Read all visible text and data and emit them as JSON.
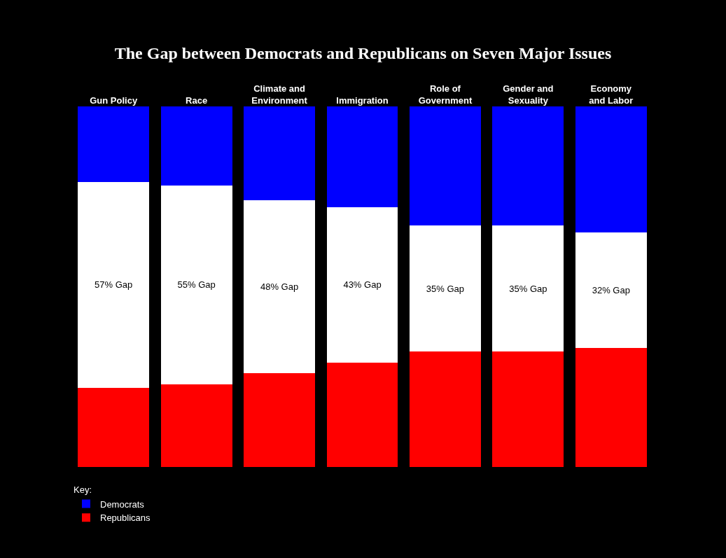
{
  "chart_data": {
    "type": "bar",
    "title": "The Gap between Democrats and Republicans on Seven Major Issues",
    "ylim": [
      0,
      100
    ],
    "tick_labels": "x",
    "stacked": true,
    "legend": "bottom left",
    "legend_title": "Key:",
    "categories": [
      "Gun Policy",
      "Race",
      "Climate and Environment",
      "Immigration",
      "Role of Government",
      "Gender and Sexuality",
      "Economy and Labor"
    ],
    "series": [
      {
        "name": "Republicans",
        "color": "#ff0000",
        "values": [
          22,
          23,
          26,
          29,
          32,
          32,
          33
        ]
      },
      {
        "color": "#ffffff",
        "values": [
          57,
          55,
          48,
          43,
          35,
          35,
          32
        ],
        "value_labels": [
          "57% Gap",
          "55% Gap",
          "48% Gap",
          "43% Gap",
          "35% Gap",
          "35% Gap",
          "32% Gap"
        ]
      },
      {
        "name": "Democrats",
        "color": "#0000ff",
        "values": [
          21,
          22,
          26,
          28,
          33,
          33,
          35
        ]
      }
    ]
  }
}
